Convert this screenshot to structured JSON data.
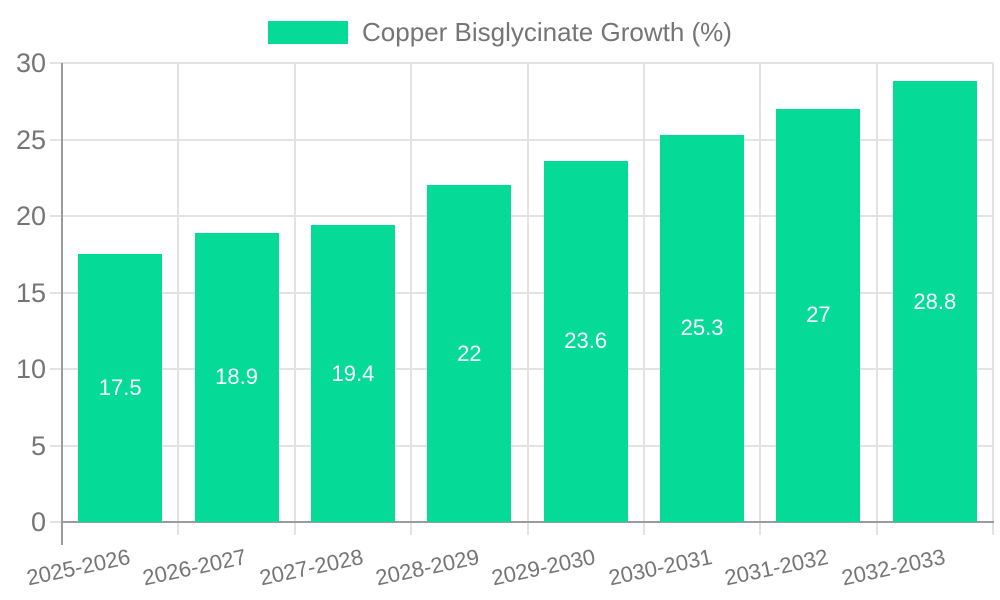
{
  "chart_data": {
    "type": "bar",
    "legend": "Copper Bisglycinate Growth (%)",
    "categories": [
      "2025-2026",
      "2026-2027",
      "2027-2028",
      "2028-2029",
      "2029-2030",
      "2030-2031",
      "2031-2032",
      "2032-2033"
    ],
    "values": [
      17.5,
      18.9,
      19.4,
      22,
      23.6,
      25.3,
      27,
      28.8
    ],
    "title": "",
    "xlabel": "",
    "ylabel": "",
    "ylim": [
      0,
      30
    ],
    "yticks": [
      0,
      5,
      10,
      15,
      20,
      25,
      30
    ],
    "grid": true,
    "legend_position": "top-center",
    "colors": {
      "bar": "#05db96",
      "grid": "#e3e3e3",
      "axis": "#9b9b9b",
      "tick_text": "#757575",
      "value_label": "#ffffff",
      "background": "#ffffff"
    }
  }
}
